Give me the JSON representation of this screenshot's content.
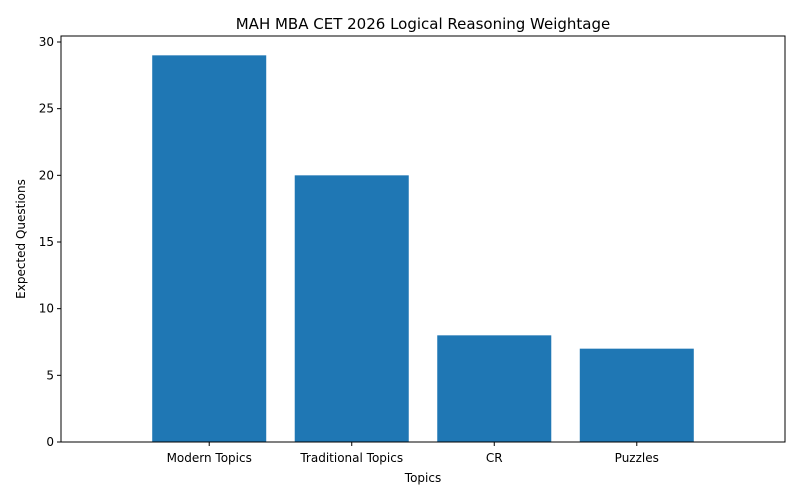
{
  "chart_data": {
    "type": "bar",
    "title": "MAH MBA CET 2026 Logical Reasoning Weightage",
    "xlabel": "Topics",
    "ylabel": "Expected Questions",
    "categories": [
      "Modern Topics",
      "Traditional Topics",
      "CR",
      "Puzzles"
    ],
    "values": [
      29,
      20,
      8,
      7
    ],
    "ylim": [
      0,
      30.45
    ],
    "yticks": [
      0,
      5,
      10,
      15,
      20,
      25,
      30
    ],
    "bar_color": "#1f77b4",
    "grid": false,
    "legend": "none"
  }
}
